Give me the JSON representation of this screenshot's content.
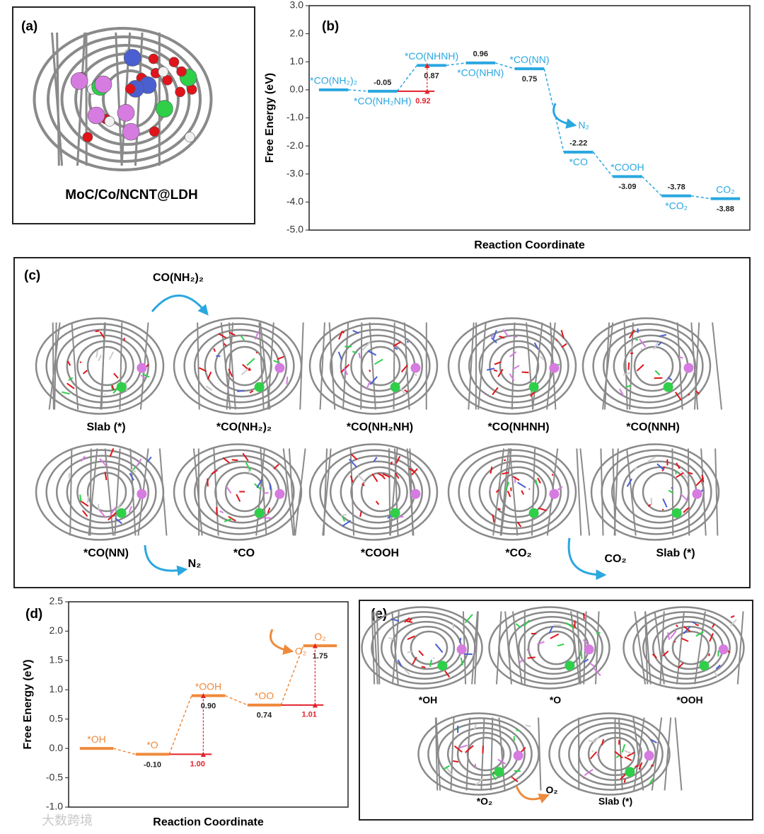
{
  "panel_labels": [
    "(a)",
    "(b)",
    "(c)",
    "(d)",
    "(e)"
  ],
  "panel_a": {
    "caption": "MoC/Co/NCNT@LDH"
  },
  "panel_c": {
    "structures": [
      "Slab (*)",
      "*CO(NH₂)₂",
      "*CO(NH₂NH)",
      "*CO(NHNH)",
      "*CO(NNH)",
      "*CO(NN)",
      "*CO",
      "*COOH",
      "*CO₂",
      "Slab (*)"
    ],
    "species": [
      "CO(NH₂)₂",
      "N₂",
      "CO₂"
    ]
  },
  "panel_e": {
    "structures": [
      "*OH",
      "*O",
      "*OOH",
      "*O₂",
      "Slab (*)"
    ],
    "species": [
      "O₂"
    ]
  },
  "watermark": "大数跨境",
  "chart_data": [
    {
      "type": "step",
      "ylabel": "Free Energy (eV)",
      "xlabel": "Reaction Coordinate",
      "color": "#2aa7df",
      "categories": [
        "*CO(NH₂)₂",
        "*CO(NH₂NH)",
        "*CO(NHNH)",
        "*CO(NHN)",
        "*CO(NN)",
        "*CO",
        "*COOH",
        "*CO₂",
        "CO₂"
      ],
      "values": [
        0,
        -0.05,
        0.87,
        0.96,
        0.75,
        -2.22,
        -3.09,
        -3.78,
        -3.88
      ],
      "value_labels": [
        null,
        "-0.05",
        "0.87",
        "0.96",
        "0.75",
        "-2.22",
        "-3.09",
        "-3.78",
        "-3.88"
      ],
      "ylim": [
        -5,
        3
      ],
      "yticks": [
        {
          "value": -5,
          "label": "-5.0"
        },
        {
          "value": -4,
          "label": "-4.0"
        },
        {
          "value": -3,
          "label": "-3.0"
        },
        {
          "value": -2,
          "label": "-2.0"
        },
        {
          "value": -1,
          "label": "-1.0"
        },
        {
          "value": 0,
          "label": "0.0"
        },
        {
          "value": 1,
          "label": "1.0"
        },
        {
          "value": 2,
          "label": "2.0"
        },
        {
          "value": 3,
          "label": "3.0"
        }
      ],
      "barriers": [
        {
          "value": 0.92,
          "start": 1,
          "end": 2,
          "color": "#e3232b"
        }
      ],
      "releases": [
        {
          "text": "N₂",
          "after": 4
        }
      ]
    },
    {
      "type": "step",
      "ylabel": "Free Energy (eV)",
      "xlabel": "Reaction Coordinate",
      "color": "#ef8a3c",
      "categories": [
        "*OH",
        "*O",
        "*OOH",
        "*OO",
        "O₂"
      ],
      "values": [
        0,
        -0.1,
        0.9,
        0.74,
        1.75
      ],
      "value_labels": [
        null,
        "-0.10",
        "0.90",
        "0.74",
        "1.75"
      ],
      "ylim": [
        -1,
        2.5
      ],
      "yticks": [
        {
          "value": -1,
          "label": "-1.0"
        },
        {
          "value": -0.5,
          "label": "-0.5"
        },
        {
          "value": 0,
          "label": "0.0"
        },
        {
          "value": 0.5,
          "label": "0.5"
        },
        {
          "value": 1,
          "label": "1.0"
        },
        {
          "value": 1.5,
          "label": "1.5"
        },
        {
          "value": 2,
          "label": "2.0"
        },
        {
          "value": 2.5,
          "label": "2.5"
        }
      ],
      "barriers": [
        {
          "value": 1,
          "label": "1.00",
          "start": 1,
          "end": 2,
          "color": "#e3232b"
        },
        {
          "value": 1.01,
          "start": 3,
          "end": 4,
          "color": "#e3232b"
        }
      ],
      "releases": [
        {
          "text": "O₂",
          "after": 3
        }
      ]
    }
  ]
}
